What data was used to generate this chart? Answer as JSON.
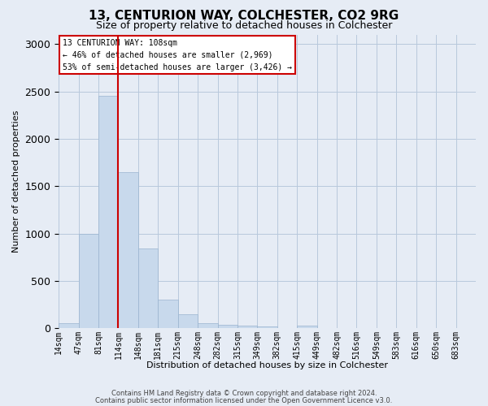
{
  "title1": "13, CENTURION WAY, COLCHESTER, CO2 9RG",
  "title2": "Size of property relative to detached houses in Colchester",
  "xlabel": "Distribution of detached houses by size in Colchester",
  "ylabel": "Number of detached properties",
  "annotation_title": "13 CENTURION WAY: 108sqm",
  "annotation_line2": "← 46% of detached houses are smaller (2,969)",
  "annotation_line3": "53% of semi-detached houses are larger (3,426) →",
  "footer1": "Contains HM Land Registry data © Crown copyright and database right 2024.",
  "footer2": "Contains public sector information licensed under the Open Government Licence v3.0.",
  "bar_color": "#c8d9ec",
  "bar_edge_color": "#9ab4cf",
  "grid_color": "#b8c8dc",
  "background_color": "#e6ecf5",
  "redline_bar_index": 2,
  "categories": [
    "14sqm",
    "47sqm",
    "81sqm",
    "114sqm",
    "148sqm",
    "181sqm",
    "215sqm",
    "248sqm",
    "282sqm",
    "315sqm",
    "349sqm",
    "382sqm",
    "415sqm",
    "449sqm",
    "482sqm",
    "516sqm",
    "549sqm",
    "583sqm",
    "616sqm",
    "650sqm",
    "683sqm"
  ],
  "values": [
    55,
    1000,
    2450,
    1650,
    840,
    300,
    150,
    55,
    40,
    30,
    20,
    0,
    30,
    0,
    0,
    0,
    0,
    0,
    0,
    0,
    0
  ],
  "ylim": [
    0,
    3100
  ],
  "annotation_box_color": "#ffffff",
  "annotation_box_edge": "#cc0000",
  "redline_color": "#cc0000",
  "title_fontsize": 11,
  "subtitle_fontsize": 9,
  "ylabel_fontsize": 8,
  "xlabel_fontsize": 8,
  "tick_fontsize": 7,
  "footer_fontsize": 6,
  "annotation_fontsize": 7
}
